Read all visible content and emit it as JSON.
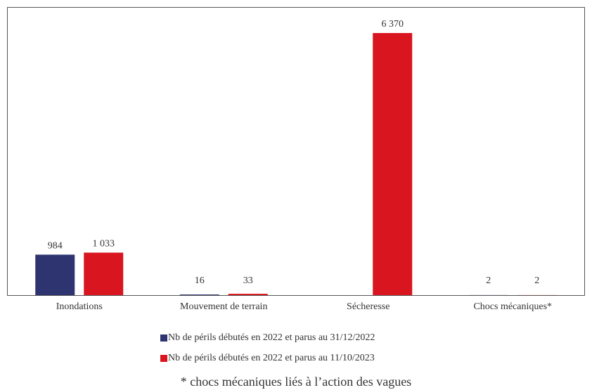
{
  "chart_data": {
    "type": "bar",
    "categories": [
      "Inondations",
      "Mouvement de terrain",
      "Sécheresse",
      "Chocs mécaniques*"
    ],
    "series": [
      {
        "name": "Nb de périls débutés en 2022 et parus au 31/12/2022",
        "color": "#2e3470",
        "values": [
          984,
          16,
          null,
          2
        ],
        "value_labels": [
          "984",
          "16",
          null,
          "2"
        ]
      },
      {
        "name": "Nb de périls débutés en 2022 et parus au 11/10/2023",
        "color": "#d9161f",
        "values": [
          1033,
          33,
          6370,
          2
        ],
        "value_labels": [
          "1 033",
          "33",
          "6 370",
          "2"
        ]
      }
    ],
    "footnote": "* chocs mécaniques liés à l’action des vagues"
  }
}
